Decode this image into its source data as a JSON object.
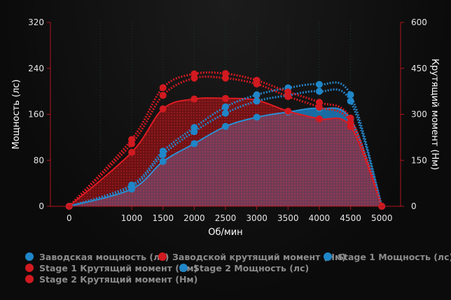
{
  "chart_data": {
    "type": "line",
    "x": [
      0,
      1000,
      1500,
      2000,
      2500,
      3000,
      3500,
      4000,
      4500,
      5000
    ],
    "xlabel": "Об/мин",
    "ylabel_left": "Мощность (лс)",
    "ylabel_right": "Крутящий момент (Нм)",
    "xlim": [
      -300,
      5300
    ],
    "ylim_left": [
      0,
      320
    ],
    "ylim_right": [
      0,
      600
    ],
    "xticks": [
      0,
      1000,
      1500,
      2000,
      2500,
      3000,
      3500,
      4000,
      4500,
      5000
    ],
    "yticks_left": [
      0,
      80,
      160,
      240,
      320
    ],
    "yticks_right": [
      0,
      150,
      300,
      450,
      600
    ],
    "grid": "vertical dotted",
    "legend_position": "bottom",
    "series": [
      {
        "name": "Заводская мощность (лс)",
        "axis": "left",
        "type": "area",
        "color": "#1a7cbd",
        "values": [
          0,
          30,
          78,
          109,
          139,
          155,
          164,
          170,
          152,
          0
        ]
      },
      {
        "name": "Заводской крутящий момент (Нм)",
        "axis": "right",
        "type": "area",
        "color": "#c8161d",
        "values": [
          0,
          176,
          318,
          350,
          352,
          346,
          310,
          285,
          260,
          0
        ]
      },
      {
        "name": "Stage 1 Мощность (лс)",
        "axis": "left",
        "type": "dotted",
        "color": "#1a7cbd",
        "values": [
          0,
          34,
          90,
          130,
          162,
          183,
          193,
          200,
          183,
          0
        ]
      },
      {
        "name": "Stage 1 Крутящий момент (Нм)",
        "axis": "right",
        "type": "dotted",
        "color": "#c8161d",
        "values": [
          0,
          204,
          362,
          418,
          418,
          399,
          358,
          323,
          274,
          0
        ]
      },
      {
        "name": "Stage 2 Мощность (лс)",
        "axis": "left",
        "type": "dotted",
        "color": "#1a7cbd",
        "values": [
          0,
          37,
          96,
          137,
          173,
          194,
          206,
          212,
          194,
          0
        ]
      },
      {
        "name": "Stage 2 Крутящий момент (Нм)",
        "axis": "right",
        "type": "dotted",
        "color": "#c8161d",
        "values": [
          0,
          218,
          387,
          432,
          433,
          411,
          373,
          339,
          288,
          0
        ]
      }
    ]
  }
}
